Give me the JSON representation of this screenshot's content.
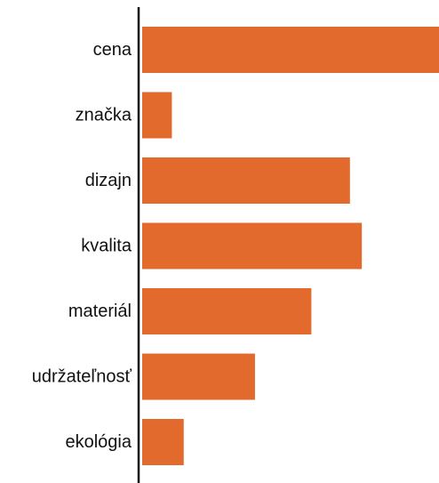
{
  "chart_data": {
    "type": "bar",
    "orientation": "horizontal",
    "title": "",
    "xlabel": "",
    "ylabel": "",
    "categories": [
      "cena",
      "značka",
      "dizajn",
      "kvalita",
      "materiál",
      "udržateľnosť",
      "ekológia"
    ],
    "values": [
      100,
      10,
      70,
      74,
      57,
      38,
      14
    ],
    "xlim": [
      0,
      100
    ],
    "grid": false,
    "legend": "none",
    "colors": {
      "bar": "#E26A2C",
      "axis": "#111111",
      "label": "#111111"
    }
  }
}
